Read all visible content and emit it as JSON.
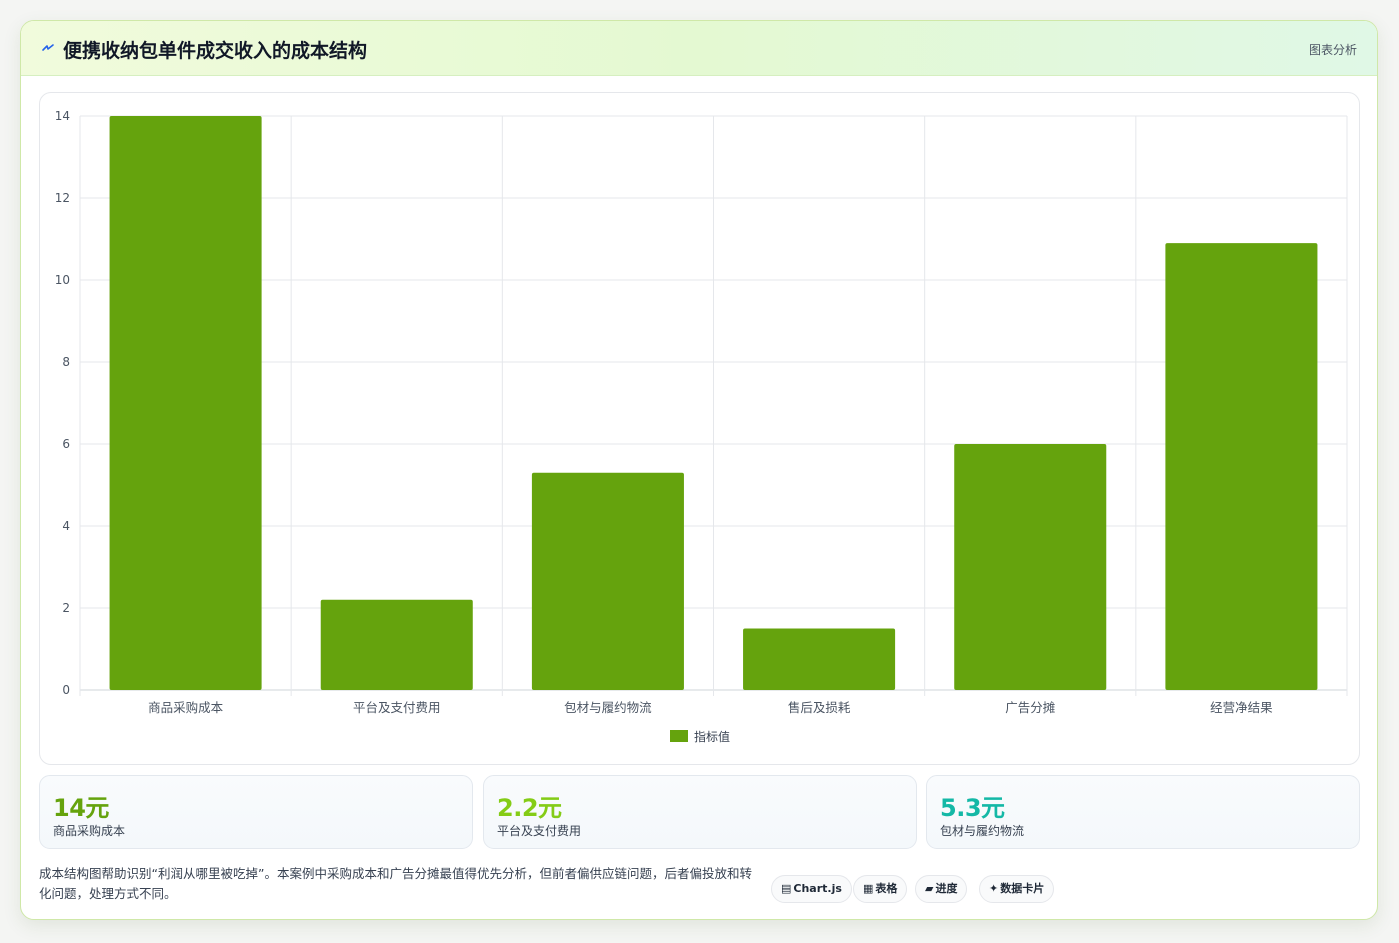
{
  "header": {
    "title": "便携收纳包单件成交收入的成本结构",
    "right_label": "图表分析",
    "accent": "#2563eb"
  },
  "chart_data": {
    "type": "bar",
    "categories": [
      "商品采购成本",
      "平台及支付费用",
      "包材与履约物流",
      "售后及损耗",
      "广告分摊",
      "经营净结果"
    ],
    "series": [
      {
        "name": "指标值",
        "values": [
          14,
          2.2,
          5.3,
          1.5,
          6,
          10.9
        ],
        "color": "#65a30d"
      }
    ],
    "title": "",
    "xlabel": "",
    "ylabel": "",
    "ylim": [
      0,
      14
    ],
    "yticks": [
      0,
      2,
      4,
      6,
      8,
      10,
      12,
      14
    ],
    "grid": true,
    "legend_position": "bottom"
  },
  "stats": [
    {
      "value": "14元",
      "label": "商品采购成本",
      "color": "#65a30d"
    },
    {
      "value": "2.2元",
      "label": "平台及支付费用",
      "color": "#84cc16"
    },
    {
      "value": "5.3元",
      "label": "包材与履约物流",
      "color": "#14b8a6"
    }
  ],
  "footer": {
    "text": "成本结构图帮助识别“利润从哪里被吃掉”。本案例中采购成本和广告分摊最值得优先分析，但前者偏供应链问题，后者偏投放和转化问题，处理方式不同。",
    "tags": [
      {
        "icon": "▤",
        "label": "Chart.js"
      },
      {
        "icon": "▦",
        "label": "表格"
      },
      {
        "icon": "▰",
        "label": "进度"
      },
      {
        "icon": "✦",
        "label": "数据卡片"
      }
    ]
  }
}
